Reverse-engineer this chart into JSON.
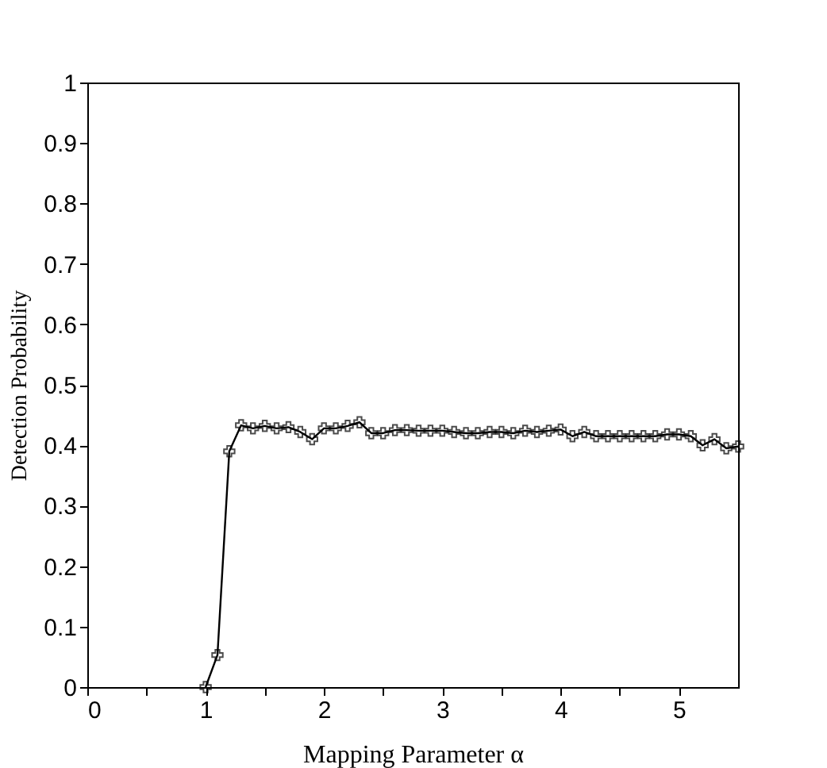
{
  "chart_data": {
    "type": "line",
    "xlabel": "Mapping Parameter α",
    "ylabel": "Detection Probability",
    "x": [
      1.0,
      1.1,
      1.2,
      1.3,
      1.4,
      1.5,
      1.6,
      1.7,
      1.8,
      1.9,
      2.0,
      2.1,
      2.2,
      2.3,
      2.4,
      2.5,
      2.6,
      2.7,
      2.8,
      2.9,
      3.0,
      3.1,
      3.2,
      3.3,
      3.4,
      3.5,
      3.6,
      3.7,
      3.8,
      3.9,
      4.0,
      4.1,
      4.2,
      4.3,
      4.4,
      4.5,
      4.6,
      4.7,
      4.8,
      4.9,
      5.0,
      5.1,
      5.2,
      5.3,
      5.4,
      5.5
    ],
    "series": [
      {
        "color": "#000000",
        "values": [
          0.0,
          0.053,
          0.39,
          0.433,
          0.428,
          0.432,
          0.428,
          0.43,
          0.422,
          0.41,
          0.428,
          0.428,
          0.432,
          0.438,
          0.42,
          0.42,
          0.425,
          0.425,
          0.424,
          0.424,
          0.424,
          0.422,
          0.42,
          0.42,
          0.422,
          0.422,
          0.42,
          0.424,
          0.422,
          0.424,
          0.426,
          0.415,
          0.422,
          0.415,
          0.415,
          0.415,
          0.415,
          0.415,
          0.415,
          0.418,
          0.418,
          0.415,
          0.4,
          0.41,
          0.395,
          0.398
        ]
      }
    ],
    "xlim": [
      0,
      5.5
    ],
    "ylim": [
      0,
      1
    ],
    "xticks": [
      0,
      {
        "value": 0.5,
        "label": null
      },
      1,
      {
        "value": 1.5,
        "label": null
      },
      2,
      {
        "value": 2.5,
        "label": null
      },
      3,
      {
        "value": 3.5,
        "label": null
      },
      4,
      {
        "value": 4.5,
        "label": null
      },
      5
    ],
    "yticks": [
      0,
      0.1,
      0.2,
      0.3,
      0.4,
      0.5,
      0.6,
      0.7,
      0.8,
      0.9,
      1
    ],
    "grid": false,
    "marker": "cross",
    "line_style": "solid"
  }
}
